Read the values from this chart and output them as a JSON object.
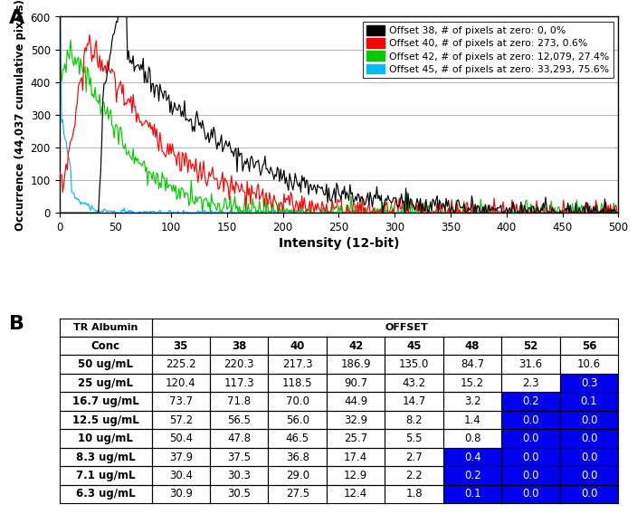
{
  "panel_a_label": "A",
  "panel_b_label": "B",
  "xlabel": "Intensity (12-bit)",
  "ylabel": "Occurrence (44,037 cumulative pixels)",
  "xlim": [
    0,
    500
  ],
  "ylim": [
    0,
    600
  ],
  "yticks": [
    0,
    100,
    200,
    300,
    400,
    500,
    600
  ],
  "xticks": [
    0,
    50,
    100,
    150,
    200,
    250,
    300,
    350,
    400,
    450,
    500
  ],
  "legend_entries": [
    {
      "label": "Offset 38, # of pixels at zero: 0, 0%",
      "color": "#000000"
    },
    {
      "label": "Offset 40, # of pixels at zero: 273, 0.6%",
      "color": "#ff0000"
    },
    {
      "label": "Offset 42, # of pixels at zero: 12,079, 27.4%",
      "color": "#00cc00"
    },
    {
      "label": "Offset 45, # of pixels at zero: 33,293, 75.6%",
      "color": "#00bbff"
    }
  ],
  "table_header1_col1": "TR Albumin",
  "table_header1_col2": "OFFSET",
  "table_header2": [
    "Conc",
    "35",
    "38",
    "40",
    "42",
    "45",
    "48",
    "52",
    "56"
  ],
  "table_rows": [
    [
      "50 ug/mL",
      "225.2",
      "220.3",
      "217.3",
      "186.9",
      "135.0",
      "84.7",
      "31.6",
      "10.6"
    ],
    [
      "25 ug/mL",
      "120.4",
      "117.3",
      "118.5",
      "90.7",
      "43.2",
      "15.2",
      "2.3",
      "0.3"
    ],
    [
      "16.7 ug/mL",
      "73.7",
      "71.8",
      "70.0",
      "44.9",
      "14.7",
      "3.2",
      "0.2",
      "0.1"
    ],
    [
      "12.5 ug/mL",
      "57.2",
      "56.5",
      "56.0",
      "32.9",
      "8.2",
      "1.4",
      "0.0",
      "0.0"
    ],
    [
      "10 ug/mL",
      "50.4",
      "47.8",
      "46.5",
      "25.7",
      "5.5",
      "0.8",
      "0.0",
      "0.0"
    ],
    [
      "8.3 ug/mL",
      "37.9",
      "37.5",
      "36.8",
      "17.4",
      "2.7",
      "0.4",
      "0.0",
      "0.0"
    ],
    [
      "7.1 ug/mL",
      "30.4",
      "30.3",
      "29.0",
      "12.9",
      "2.2",
      "0.2",
      "0.0",
      "0.0"
    ],
    [
      "6.3 ug/mL",
      "30.9",
      "30.5",
      "27.5",
      "12.4",
      "1.8",
      "0.1",
      "0.0",
      "0.0"
    ]
  ],
  "blue_threshold": 0.5,
  "blue_color": "#0000ee",
  "white_color": "#ffffff",
  "blue_text_color": "#ffffff",
  "normal_text_color": "#000000",
  "background_color": "#ffffff",
  "grid_color": "#aaaaaa",
  "col_widths": [
    0.155,
    0.098,
    0.098,
    0.098,
    0.098,
    0.098,
    0.098,
    0.098,
    0.098
  ]
}
